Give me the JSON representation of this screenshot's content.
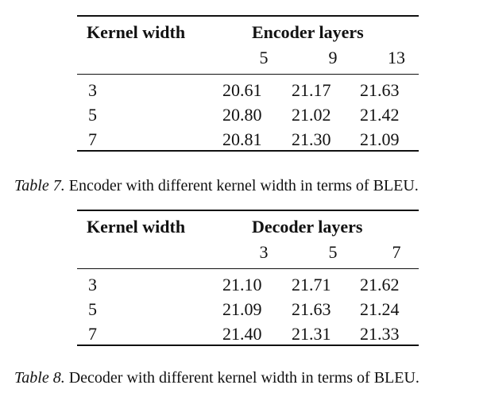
{
  "tables": [
    {
      "header_left": "Kernel width",
      "group_header": "Encoder layers",
      "subheaders": [
        "5",
        "9",
        "13"
      ],
      "rows": [
        {
          "label": "3",
          "values": [
            "20.61",
            "21.17",
            "21.63"
          ]
        },
        {
          "label": "5",
          "values": [
            "20.80",
            "21.02",
            "21.42"
          ]
        },
        {
          "label": "7",
          "values": [
            "20.81",
            "21.30",
            "21.09"
          ]
        }
      ],
      "caption_label": "Table 7.",
      "caption_text": " Encoder with different kernel width in terms of BLEU."
    },
    {
      "header_left": "Kernel width",
      "group_header": "Decoder layers",
      "subheaders": [
        "3",
        "5",
        "7"
      ],
      "rows": [
        {
          "label": "3",
          "values": [
            "21.10",
            "21.71",
            "21.62"
          ]
        },
        {
          "label": "5",
          "values": [
            "21.09",
            "21.63",
            "21.24"
          ]
        },
        {
          "label": "7",
          "values": [
            "21.40",
            "21.31",
            "21.33"
          ]
        }
      ],
      "caption_label": "Table 8.",
      "caption_text": " Decoder with different kernel width in terms of BLEU."
    }
  ]
}
